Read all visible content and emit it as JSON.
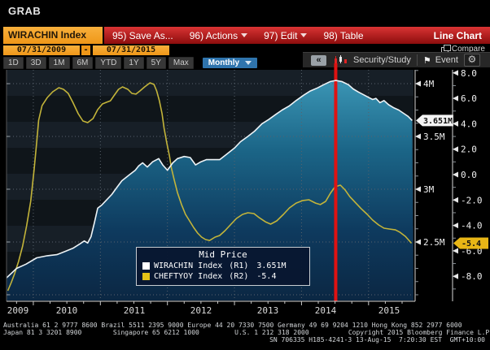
{
  "window": {
    "title": "GRAB"
  },
  "toolbar": {
    "security": "WIRACHIN Index",
    "save_as": "95) Save As...",
    "actions": "96) Actions",
    "edit": "97) Edit",
    "table": "98) Table",
    "chart_type": "Line Chart",
    "compare": "Compare"
  },
  "date_range": {
    "from": "07/31/2009",
    "separator": "-",
    "to": "07/31/2015"
  },
  "periods": [
    "1D",
    "3D",
    "1M",
    "6M",
    "YTD",
    "1Y",
    "5Y",
    "Max"
  ],
  "frequency": "Monthly",
  "chart_toolbar": {
    "collapse": "«",
    "security_study": "Security/Study",
    "event": "Event",
    "gear": "⚙",
    "flag": "⚑"
  },
  "legend": {
    "title": "Mid Price",
    "entries": [
      {
        "name": "WIRACHIN Index",
        "axis": "(R1)",
        "value": "3.651M",
        "color": "#ffffff"
      },
      {
        "name": "CHEFTYOY Index",
        "axis": "(R2)",
        "value": "-5.4",
        "color": "#e5c217"
      }
    ]
  },
  "footer": {
    "line1": "Australia 61 2 9777 8600 Brazil 5511 2395 9000 Europe 44 20 7330 7500 Germany 49 69 9204 1210 Hong Kong 852 2977 6000",
    "line2": "Japan 81 3 3201 8900        Singapore 65 6212 1000         U.S. 1 212 318 2000          Copyright 2015 Bloomberg Finance L.P.",
    "line3": "SN 706335 H185-4241-3 13-Aug-15  7:20:30 EST  GMT+10:00"
  },
  "chart_data": {
    "type": "line",
    "title": "Mid Price",
    "x_axis": {
      "labels": [
        "2009",
        "2010",
        "2011",
        "2012",
        "2013",
        "2014",
        "2015"
      ],
      "domain": [
        2009.6,
        2015.67
      ],
      "gridline_years": [
        2010,
        2011,
        2012,
        2013,
        2014,
        2015
      ]
    },
    "right_axis_1": {
      "name": "R1",
      "domain": [
        1.946,
        4.131
      ],
      "ticks": [
        {
          "label": "4M",
          "value": 4.0
        },
        {
          "label": "3.5M",
          "value": 3.5
        },
        {
          "label": "3M",
          "value": 3.0
        },
        {
          "label": "2.5M",
          "value": 2.5
        }
      ],
      "grid_values": [
        4.0,
        3.5,
        3.0,
        2.5,
        2.0
      ],
      "last_label": "3.651M",
      "last_value": 3.651
    },
    "right_axis_2": {
      "name": "R2",
      "domain": [
        -9.904,
        8.243
      ],
      "ticks": [
        {
          "label": "8.0",
          "value": 8
        },
        {
          "label": "6.0",
          "value": 6
        },
        {
          "label": "4.0",
          "value": 4
        },
        {
          "label": "2.0",
          "value": 2
        },
        {
          "label": "0.0",
          "value": 0
        },
        {
          "label": "-2.0",
          "value": -2
        },
        {
          "label": "-4.0",
          "value": -4
        },
        {
          "label": "-6.0",
          "value": -6
        },
        {
          "label": "-8.0",
          "value": -8
        }
      ],
      "last_label": "-5.4",
      "last_value": -5.4
    },
    "event_line_x": 2014.51,
    "event_line_color": "#e01212",
    "series": [
      {
        "name": "WIRACHIN Index",
        "axis": "R1",
        "color": "#edf3f6",
        "fill": true,
        "points": [
          [
            2009.6,
            2.16
          ],
          [
            2009.75,
            2.25
          ],
          [
            2009.89,
            2.29
          ],
          [
            2010.05,
            2.35
          ],
          [
            2010.21,
            2.37
          ],
          [
            2010.35,
            2.38
          ],
          [
            2010.47,
            2.41
          ],
          [
            2010.59,
            2.44
          ],
          [
            2010.69,
            2.48
          ],
          [
            2010.76,
            2.51
          ],
          [
            2010.81,
            2.49
          ],
          [
            2010.86,
            2.55
          ],
          [
            2010.91,
            2.68
          ],
          [
            2010.96,
            2.82
          ],
          [
            2011.02,
            2.85
          ],
          [
            2011.08,
            2.89
          ],
          [
            2011.17,
            2.95
          ],
          [
            2011.25,
            3.02
          ],
          [
            2011.32,
            3.08
          ],
          [
            2011.4,
            3.12
          ],
          [
            2011.44,
            3.14
          ],
          [
            2011.52,
            3.18
          ],
          [
            2011.57,
            3.22
          ],
          [
            2011.63,
            3.25
          ],
          [
            2011.7,
            3.21
          ],
          [
            2011.78,
            3.26
          ],
          [
            2011.87,
            3.29
          ],
          [
            2011.93,
            3.23
          ],
          [
            2012.0,
            3.18
          ],
          [
            2012.08,
            3.25
          ],
          [
            2012.15,
            3.29
          ],
          [
            2012.25,
            3.31
          ],
          [
            2012.34,
            3.3
          ],
          [
            2012.42,
            3.23
          ],
          [
            2012.5,
            3.26
          ],
          [
            2012.58,
            3.28
          ],
          [
            2012.68,
            3.28
          ],
          [
            2012.78,
            3.28
          ],
          [
            2012.88,
            3.33
          ],
          [
            2013.0,
            3.39
          ],
          [
            2013.09,
            3.45
          ],
          [
            2013.2,
            3.5
          ],
          [
            2013.3,
            3.55
          ],
          [
            2013.41,
            3.62
          ],
          [
            2013.51,
            3.66
          ],
          [
            2013.62,
            3.71
          ],
          [
            2013.71,
            3.75
          ],
          [
            2013.82,
            3.79
          ],
          [
            2013.92,
            3.84
          ],
          [
            2014.03,
            3.89
          ],
          [
            2014.13,
            3.93
          ],
          [
            2014.24,
            3.96
          ],
          [
            2014.33,
            3.99
          ],
          [
            2014.43,
            4.02
          ],
          [
            2014.51,
            4.03
          ],
          [
            2014.6,
            4.02
          ],
          [
            2014.7,
            3.99
          ],
          [
            2014.77,
            3.95
          ],
          [
            2014.85,
            3.92
          ],
          [
            2014.94,
            3.89
          ],
          [
            2015.0,
            3.87
          ],
          [
            2015.06,
            3.85
          ],
          [
            2015.11,
            3.86
          ],
          [
            2015.17,
            3.82
          ],
          [
            2015.23,
            3.84
          ],
          [
            2015.3,
            3.8
          ],
          [
            2015.38,
            3.77
          ],
          [
            2015.45,
            3.75
          ],
          [
            2015.52,
            3.72
          ],
          [
            2015.59,
            3.69
          ],
          [
            2015.65,
            3.651
          ]
        ]
      },
      {
        "name": "CHEFTYOY Index",
        "axis": "R2",
        "color": "#c3b43a",
        "fill": false,
        "points": [
          [
            2009.62,
            -9.14
          ],
          [
            2009.67,
            -8.5
          ],
          [
            2009.72,
            -7.8
          ],
          [
            2009.78,
            -6.84
          ],
          [
            2009.84,
            -5.62
          ],
          [
            2009.9,
            -4.03
          ],
          [
            2009.96,
            -2.11
          ],
          [
            2010.01,
            0.32
          ],
          [
            2010.05,
            2.56
          ],
          [
            2010.08,
            4.28
          ],
          [
            2010.13,
            5.43
          ],
          [
            2010.21,
            6.07
          ],
          [
            2010.29,
            6.52
          ],
          [
            2010.38,
            6.84
          ],
          [
            2010.45,
            6.71
          ],
          [
            2010.52,
            6.39
          ],
          [
            2010.59,
            5.69
          ],
          [
            2010.67,
            4.79
          ],
          [
            2010.74,
            4.22
          ],
          [
            2010.81,
            4.09
          ],
          [
            2010.89,
            4.41
          ],
          [
            2010.96,
            5.11
          ],
          [
            2011.03,
            5.56
          ],
          [
            2011.09,
            5.69
          ],
          [
            2011.15,
            5.81
          ],
          [
            2011.21,
            6.26
          ],
          [
            2011.27,
            6.71
          ],
          [
            2011.33,
            6.9
          ],
          [
            2011.41,
            6.71
          ],
          [
            2011.47,
            6.39
          ],
          [
            2011.53,
            6.33
          ],
          [
            2011.59,
            6.58
          ],
          [
            2011.66,
            6.9
          ],
          [
            2011.74,
            7.22
          ],
          [
            2011.8,
            7.09
          ],
          [
            2011.84,
            6.58
          ],
          [
            2011.88,
            5.81
          ],
          [
            2011.92,
            4.79
          ],
          [
            2011.95,
            3.64
          ],
          [
            2011.99,
            2.49
          ],
          [
            2012.03,
            1.47
          ],
          [
            2012.06,
            0.51
          ],
          [
            2012.1,
            -0.38
          ],
          [
            2012.15,
            -1.41
          ],
          [
            2012.21,
            -2.36
          ],
          [
            2012.27,
            -3.13
          ],
          [
            2012.33,
            -3.64
          ],
          [
            2012.39,
            -4.15
          ],
          [
            2012.45,
            -4.6
          ],
          [
            2012.51,
            -4.92
          ],
          [
            2012.57,
            -5.11
          ],
          [
            2012.63,
            -5.18
          ],
          [
            2012.71,
            -4.92
          ],
          [
            2012.78,
            -4.79
          ],
          [
            2012.86,
            -4.41
          ],
          [
            2012.95,
            -3.9
          ],
          [
            2013.03,
            -3.45
          ],
          [
            2013.12,
            -3.13
          ],
          [
            2013.2,
            -3.0
          ],
          [
            2013.29,
            -3.07
          ],
          [
            2013.37,
            -3.39
          ],
          [
            2013.46,
            -3.71
          ],
          [
            2013.54,
            -3.9
          ],
          [
            2013.63,
            -3.64
          ],
          [
            2013.73,
            -3.13
          ],
          [
            2013.82,
            -2.62
          ],
          [
            2013.92,
            -2.24
          ],
          [
            2014.02,
            -2.04
          ],
          [
            2014.11,
            -1.98
          ],
          [
            2014.21,
            -2.24
          ],
          [
            2014.28,
            -2.36
          ],
          [
            2014.36,
            -2.11
          ],
          [
            2014.43,
            -1.47
          ],
          [
            2014.5,
            -0.96
          ],
          [
            2014.58,
            -0.83
          ],
          [
            2014.65,
            -1.21
          ],
          [
            2014.72,
            -1.73
          ],
          [
            2014.81,
            -2.24
          ],
          [
            2014.89,
            -2.68
          ],
          [
            2014.98,
            -3.13
          ],
          [
            2015.06,
            -3.58
          ],
          [
            2015.15,
            -3.96
          ],
          [
            2015.23,
            -4.22
          ],
          [
            2015.31,
            -4.28
          ],
          [
            2015.4,
            -4.35
          ],
          [
            2015.47,
            -4.54
          ],
          [
            2015.55,
            -4.86
          ],
          [
            2015.64,
            -5.4
          ]
        ]
      }
    ]
  },
  "colors": {
    "accent_orange": "#f3a226",
    "toolbar_red": "#b41212",
    "fill_teal_top": "#3f9cbb",
    "fill_teal_bottom": "#0b2743",
    "badge_r1_bg": "#f4f4f4",
    "badge_r2_bg": "#e8b616",
    "grid": "#58626c"
  }
}
